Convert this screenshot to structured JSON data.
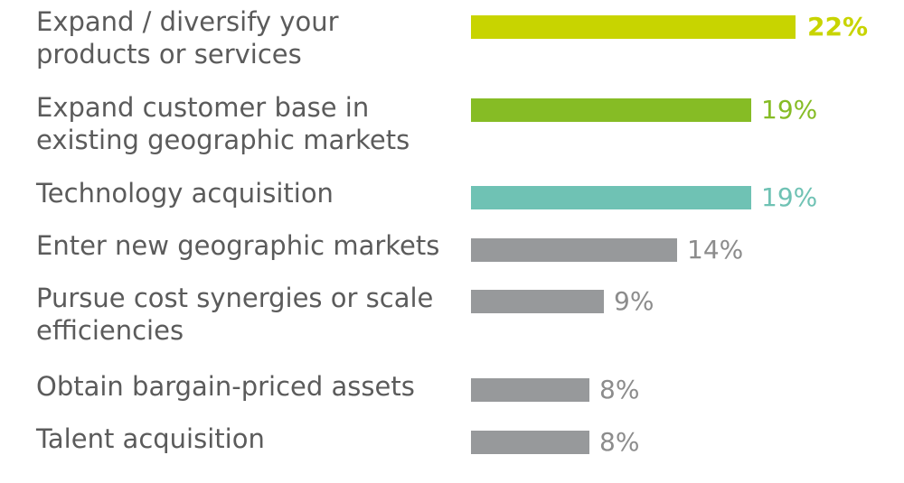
{
  "chart_data": {
    "type": "bar",
    "orientation": "horizontal",
    "categories": [
      "Expand / diversify your\nproducts or services",
      "Expand customer base in\nexisting geographic markets",
      "Technology acquisition",
      "Enter new geographic markets",
      "Pursue cost synergies or scale\nefficiencies",
      "Obtain bargain-priced assets",
      "Talent acquisition"
    ],
    "values": [
      22,
      19,
      19,
      14,
      9,
      8,
      8
    ],
    "value_labels": [
      "22%",
      "19%",
      "19%",
      "14%",
      "9%",
      "8%",
      "8%"
    ],
    "unit": "%",
    "bar_colors": [
      "#c8d400",
      "#86bc25",
      "#6fc2b4",
      "#97999b",
      "#97999b",
      "#97999b",
      "#97999b"
    ],
    "label_colors": [
      "#c8d400",
      "#86bc25",
      "#6fc2b4",
      "#8c8c8c",
      "#8c8c8c",
      "#8c8c8c",
      "#8c8c8c"
    ],
    "bold_value_label": [
      true,
      false,
      false,
      false,
      false,
      false,
      false
    ],
    "title": "",
    "xlabel": "",
    "ylabel": "",
    "xlim": [
      0,
      22
    ],
    "grid": false,
    "legend": "none"
  }
}
